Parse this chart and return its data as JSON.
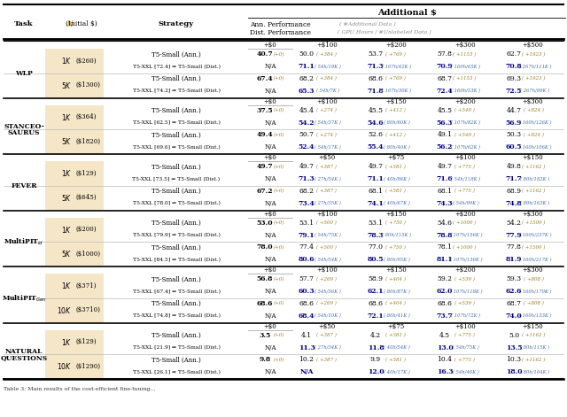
{
  "task_labels": [
    "WLP",
    "Stanceo-\nSaurus",
    "Fever",
    "MultiPit_id",
    "MultiPit_Gen",
    "Natural\nQuestions"
  ],
  "task_labels_sc": [
    "WLP",
    "Stanceo-\nSaurus",
    "Fever",
    "MultiPit",
    "MultiPit",
    "Natural\nQuestions"
  ],
  "budget_cols_sets": [
    [
      "+$0",
      "+$100",
      "+$200",
      "+$300",
      "+$500"
    ],
    [
      "+$0",
      "+$100",
      "+$150",
      "+$200",
      "+$300"
    ],
    [
      "+$0",
      "+$50",
      "+$75",
      "+$100",
      "+$150"
    ],
    [
      "+$0",
      "+$100",
      "+$150",
      "+$200",
      "+$300"
    ],
    [
      "+$0",
      "+$100",
      "+$150",
      "+$200",
      "+$300"
    ],
    [
      "+$0",
      "+$50",
      "+$75",
      "+$100",
      "+$150"
    ]
  ],
  "N_labels": [
    [
      "1K ($260)",
      "5K ($1300)"
    ],
    [
      "1K ($364)",
      "5K ($1820)"
    ],
    [
      "1K ($129)",
      "5K ($645)"
    ],
    [
      "1K ($200)",
      "5K ($1000)"
    ],
    [
      "1K ($371)",
      "10K ($3710)"
    ],
    [
      "1K ($129)",
      "10K ($1290)"
    ]
  ],
  "dist_strategy_nums": [
    [
      "72.4",
      "74.2"
    ],
    [
      "62.5",
      "69.6"
    ],
    [
      "73.5",
      "78.0"
    ],
    [
      "79.9",
      "84.5"
    ],
    [
      "67.4",
      "74.8"
    ],
    [
      "21.9",
      "26.1"
    ]
  ],
  "ann_base": [
    [
      "40.7",
      "67.4"
    ],
    [
      "37.5",
      "49.4"
    ],
    [
      "49.7",
      "67.2"
    ],
    [
      "53.0",
      "78.0"
    ],
    [
      "56.8",
      "68.6"
    ],
    [
      "3.5",
      "9.8"
    ]
  ],
  "ann_vals": [
    [
      [
        "50.0",
        "53.7",
        "57.8",
        "62.7"
      ],
      [
        "68.2",
        "68.6",
        "68.7",
        "69.3"
      ]
    ],
    [
      [
        "45.4",
        "45.5",
        "45.5",
        "44.7"
      ],
      [
        "50.7",
        "52.6",
        "49.1",
        "50.3"
      ]
    ],
    [
      [
        "49.7",
        "49.7",
        "49.7",
        "49.8"
      ],
      [
        "68.2",
        "68.1",
        "68.1",
        "68.9"
      ]
    ],
    [
      [
        "53.1",
        "53.1",
        "54.6",
        "54.2"
      ],
      [
        "77.4",
        "77.0",
        "78.1",
        "77.8"
      ]
    ],
    [
      [
        "57.7",
        "58.9",
        "59.2",
        "59.3"
      ],
      [
        "68.6",
        "68.6",
        "68.6",
        "68.7"
      ]
    ],
    [
      [
        "4.1",
        "4.2",
        "4.5",
        "5.0"
      ],
      [
        "10.2",
        "9.9",
        "10.4",
        "10.3"
      ]
    ]
  ],
  "ann_annots": [
    [
      [
        "+384",
        "+769",
        "+1153",
        "+1923"
      ],
      [
        "+384",
        "+769",
        "+1153",
        "+1923"
      ]
    ],
    [
      [
        "+274",
        "+412",
        "+549",
        "+824"
      ],
      [
        "+274",
        "+412",
        "+549",
        "+824"
      ]
    ],
    [
      [
        "+387",
        "+581",
        "+775",
        "+1162"
      ],
      [
        "+387",
        "+581",
        "+775",
        "+1162"
      ]
    ],
    [
      [
        "+500",
        "+750",
        "+1000",
        "+1500"
      ],
      [
        "+500",
        "+750",
        "+1000",
        "+1500"
      ]
    ],
    [
      [
        "+269",
        "+404",
        "+539",
        "+808"
      ],
      [
        "+269",
        "+404",
        "+539",
        "+808"
      ]
    ],
    [
      [
        "+387",
        "+581",
        "+775",
        "+1162"
      ],
      [
        "+387",
        "+581",
        "+775",
        "+1162"
      ]
    ]
  ],
  "dist_vals": [
    [
      [
        "71.1",
        "71.3",
        "70.9",
        "70.8"
      ],
      [
        "65.3",
        "71.8",
        "72.4",
        "72.5"
      ]
    ],
    [
      [
        "54.2",
        "54.6",
        "56.3",
        "56.9"
      ],
      [
        "52.4",
        "55.4",
        "56.2",
        "60.5"
      ]
    ],
    [
      [
        "71.3",
        "71.1",
        "71.6",
        "71.7"
      ],
      [
        "73.4",
        "74.1",
        "74.3",
        "74.8"
      ]
    ],
    [
      [
        "79.1",
        "78.3",
        "78.8",
        "77.9"
      ],
      [
        "80.6",
        "80.5",
        "81.1",
        "81.9"
      ]
    ],
    [
      [
        "60.3",
        "62.1",
        "62.0",
        "62.6"
      ],
      [
        "68.4",
        "72.1",
        "73.7",
        "74.0"
      ]
    ],
    [
      [
        "11.3",
        "11.8",
        "13.0",
        "13.5"
      ],
      [
        "N/A",
        "12.0",
        "16.3",
        "18.0"
      ]
    ]
  ],
  "dist_annots": [
    [
      [
        "54h/19K",
        "107h/42K",
        "160h/65K",
        "267h/111K"
      ],
      [
        "54h/7K",
        "107h/30K",
        "160h/53K",
        "267h/99K"
      ]
    ],
    [
      [
        "54h/37K",
        "80h/60K",
        "107h/82K",
        "160h/126K"
      ],
      [
        "54h/17K",
        "80h/40K",
        "107h/62K",
        "160h/106K"
      ]
    ],
    [
      [
        "27h/54K",
        "40h/86K",
        "54h/118K",
        "80h/182K"
      ],
      [
        "27h/35K",
        "40h/67K",
        "54h/99K",
        "80h/163K"
      ]
    ],
    [
      [
        "54h/75K",
        "80h/115K",
        "107h/156K",
        "160h/237K"
      ],
      [
        "54h/54K",
        "80h/95K",
        "107h/136K",
        "160h/217K"
      ]
    ],
    [
      [
        "54h/56K",
        "80h/87K",
        "107h/118K",
        "160h/179K"
      ],
      [
        "54h/10K",
        "80h/41K",
        "107h/72K",
        "160h/133K"
      ]
    ],
    [
      [
        "27h/34K",
        "40h/54K",
        "54h/75K",
        "80h/115K"
      ],
      [
        "",
        "40h/17K",
        "54h/46K",
        "80h/104K"
      ]
    ]
  ],
  "ann_color": "#9B7D1F",
  "dist_color": "#4169AA",
  "dist_bold_color": "#00008B",
  "N_bg_color": "#F5E6C8"
}
